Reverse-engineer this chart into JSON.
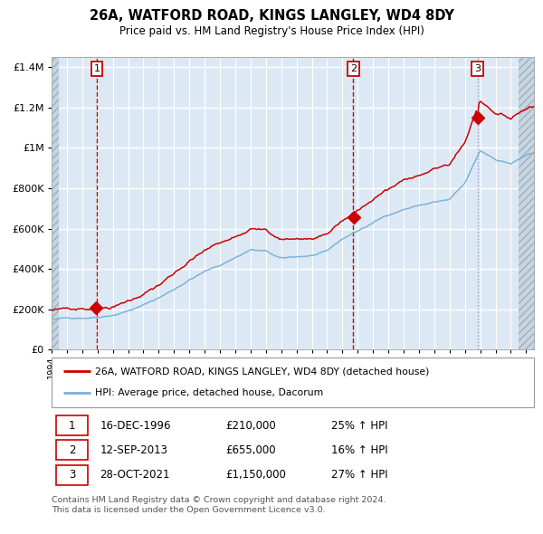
{
  "title1": "26A, WATFORD ROAD, KINGS LANGLEY, WD4 8DY",
  "title2": "Price paid vs. HM Land Registry's House Price Index (HPI)",
  "legend_property": "26A, WATFORD ROAD, KINGS LANGLEY, WD4 8DY (detached house)",
  "legend_hpi": "HPI: Average price, detached house, Dacorum",
  "sale1_date": "16-DEC-1996",
  "sale1_price": 210000,
  "sale1_hpi": "25% ↑ HPI",
  "sale2_date": "12-SEP-2013",
  "sale2_price": 655000,
  "sale2_hpi": "16% ↑ HPI",
  "sale3_date": "28-OCT-2021",
  "sale3_price": 1150000,
  "sale3_hpi": "27% ↑ HPI",
  "footer": "Contains HM Land Registry data © Crown copyright and database right 2024.\nThis data is licensed under the Open Government Licence v3.0.",
  "property_color": "#cc0000",
  "hpi_color": "#7ab0d4",
  "bg_color": "#dce9f5",
  "hatch_color": "#c8d4e0",
  "grid_color": "#ffffff",
  "ylim": [
    0,
    1450000
  ],
  "yticks": [
    0,
    200000,
    400000,
    600000,
    800000,
    1000000,
    1200000,
    1400000
  ],
  "sale1_year": 1996.96,
  "sale2_year": 2013.71,
  "sale3_year": 2021.83,
  "xmin": 1994.0,
  "xmax": 2025.5
}
